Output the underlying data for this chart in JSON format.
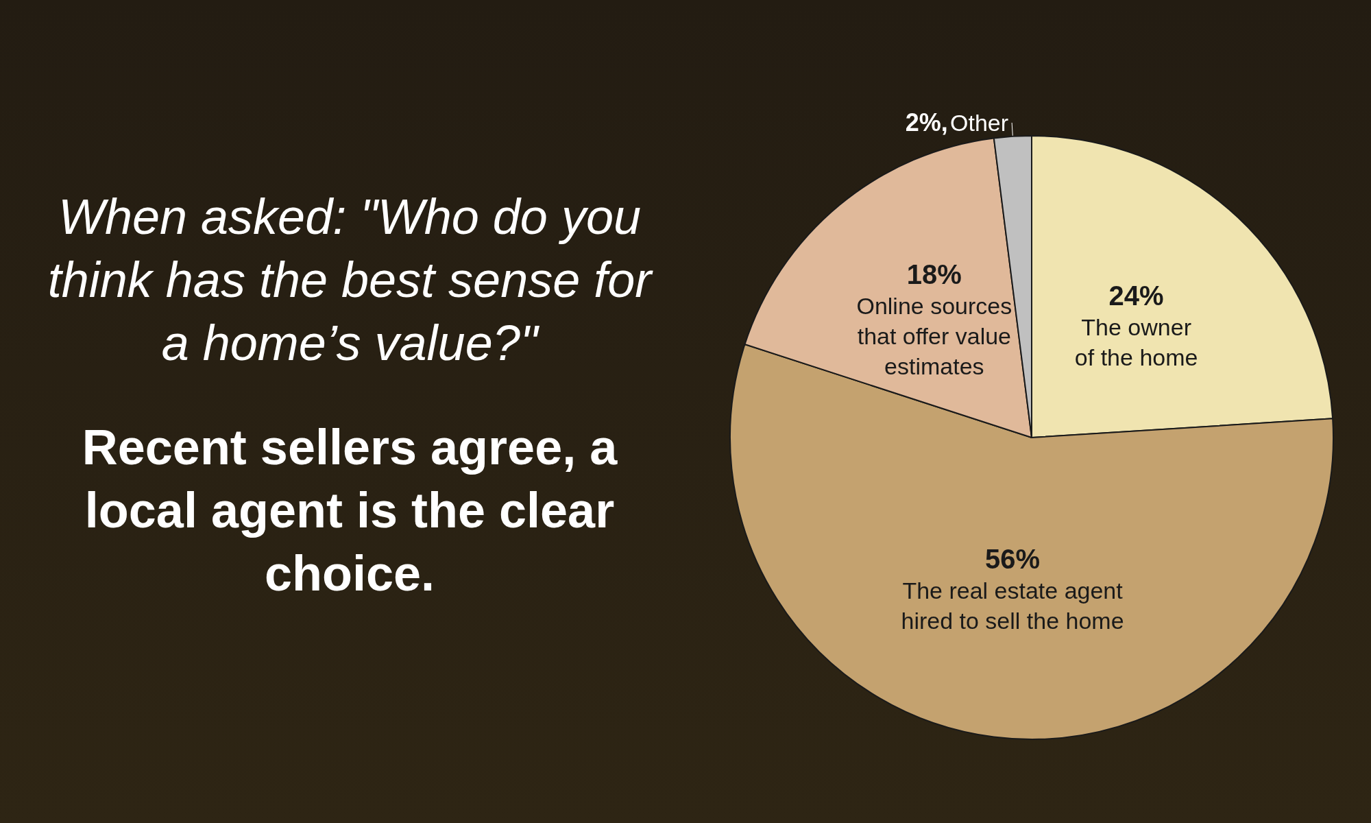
{
  "chart_data": {
    "type": "pie",
    "title": "When asked: \"Who do you think has the best sense for a home’s value?\"",
    "subtitle": "Recent sellers agree, a local agent is the clear choice.",
    "categories": [
      "The owner of the home",
      "The real estate agent hired to sell the home",
      "Online sources that offer value estimates",
      "Other"
    ],
    "values": [
      24,
      56,
      18,
      2
    ],
    "value_labels": [
      "24%",
      "56%",
      "18%",
      "2%,"
    ],
    "colors": [
      "#f0e4b0",
      "#c4a26f",
      "#e0b99a",
      "#c0c0c0"
    ],
    "legend": false
  }
}
